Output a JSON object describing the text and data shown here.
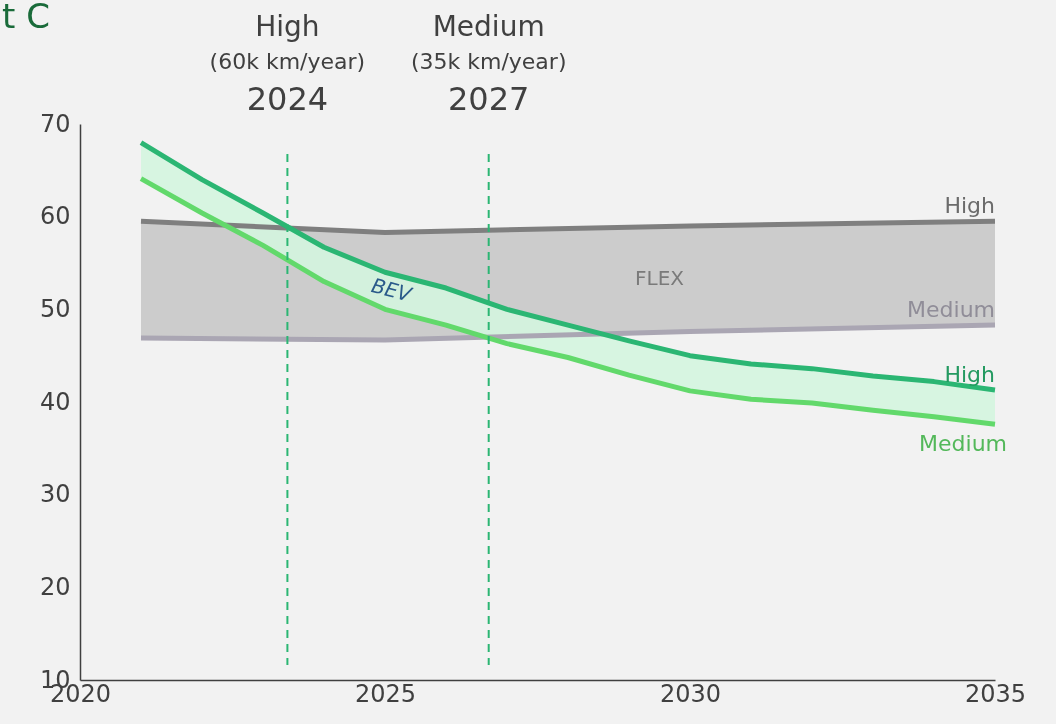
{
  "chart_data": {
    "type": "line",
    "title": "t C",
    "xlim": [
      2020,
      2035
    ],
    "xticks": [
      2020,
      2025,
      2030,
      2035
    ],
    "ylim": [
      10,
      70
    ],
    "yticks": [
      10,
      20,
      30,
      40,
      50,
      60,
      70
    ],
    "grid": false,
    "legend": false,
    "marker": "none",
    "line_style": "solid",
    "series": [
      {
        "name": "High",
        "color": "#7f7f7f",
        "x": [
          2021,
          2025,
          2030,
          2035
        ],
        "values": [
          59.5,
          58.3,
          59.0,
          59.5
        ],
        "lower": [
          46.9,
          46.7,
          47.6,
          48.3
        ],
        "upper": [
          59.5,
          58.3,
          59.0,
          59.5
        ]
      },
      {
        "name": "Medium",
        "color": "#aaa6b3",
        "x": [
          2021,
          2025,
          2030,
          2035
        ],
        "values": [
          46.9,
          46.7,
          47.6,
          48.3
        ]
      },
      {
        "name": "High",
        "color": "#2bb673",
        "x": [
          2021,
          2022,
          2023,
          2024,
          2025,
          2026,
          2027,
          2028,
          2029,
          2030,
          2031,
          2032,
          2033,
          2034,
          2035
        ],
        "values": [
          68.0,
          64.0,
          60.4,
          56.7,
          54.0,
          52.3,
          50.0,
          48.3,
          46.6,
          45.0,
          44.1,
          43.6,
          42.8,
          42.2,
          41.3
        ],
        "lower": [
          64.1,
          60.4,
          56.9,
          53.0,
          50.0,
          48.3,
          46.3,
          44.8,
          42.9,
          41.2,
          40.3,
          39.9,
          39.1,
          38.4,
          37.6
        ],
        "upper": [
          68.0,
          64.0,
          60.4,
          56.7,
          54.0,
          52.3,
          50.0,
          48.3,
          46.6,
          45.0,
          44.1,
          43.6,
          42.8,
          42.2,
          41.3
        ]
      },
      {
        "name": "Medium",
        "color": "#62d96b",
        "x": [
          2021,
          2022,
          2023,
          2024,
          2025,
          2026,
          2027,
          2028,
          2029,
          2030,
          2031,
          2032,
          2033,
          2034,
          2035
        ],
        "values": [
          64.1,
          60.4,
          56.9,
          53.0,
          50.0,
          48.3,
          46.3,
          44.8,
          42.9,
          41.2,
          40.3,
          39.9,
          39.1,
          38.4,
          37.6
        ]
      }
    ],
    "annotations": [
      "FLEX",
      "BEV"
    ],
    "ref_lines": [
      {
        "axis": "x",
        "value": 2023.4,
        "label": "High\n(60k km/year)\n2024",
        "color": "#2bb673",
        "line_style": "dashed"
      },
      {
        "axis": "x",
        "value": 2026.7,
        "label": "Medium\n(35k km/year)\n2027",
        "color": "#2bb673",
        "line_style": "dashed"
      }
    ]
  }
}
